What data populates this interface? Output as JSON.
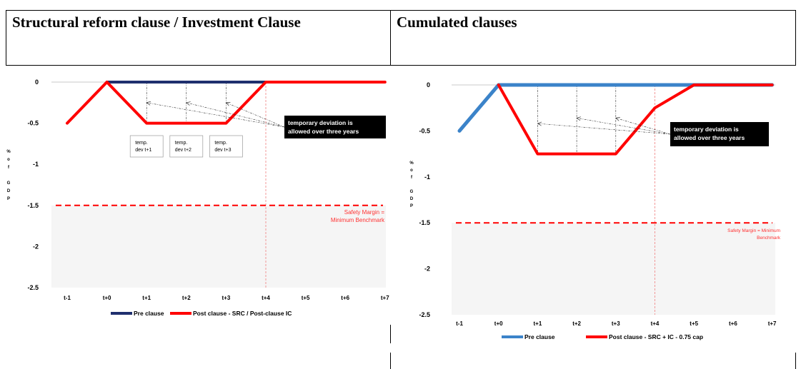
{
  "header": {
    "left_title": "Structural reform clause / Investment Clause",
    "right_title": "Cumulated clauses"
  },
  "chart_data": [
    {
      "type": "line",
      "x": [
        "t-1",
        "t+0",
        "t+1",
        "t+2",
        "t+3",
        "t+4",
        "t+5",
        "t+6",
        "t+7"
      ],
      "ylim": [
        -2.5,
        0
      ],
      "yticks": [
        "0",
        "-0.5",
        "-1",
        "-1.5",
        "-2",
        "-2.5"
      ],
      "ylabel": "% of GDP",
      "series": [
        {
          "name": "Pre clause",
          "color": "#1f2f6e",
          "values": [
            null,
            0,
            0,
            0,
            0,
            0,
            null,
            null,
            null
          ]
        },
        {
          "name": "Post clause - SRC / Post-clause IC",
          "color": "#ff0000",
          "values": [
            -0.5,
            0,
            -0.5,
            -0.5,
            -0.5,
            0,
            0,
            0,
            0
          ]
        }
      ],
      "safety_margin": {
        "value": -1.5,
        "label_line1": "Safety Margin =",
        "label_line2": "Minimum Benchmark"
      },
      "marker_x": "t+4",
      "callout": {
        "line1": "temporary deviation is",
        "line2": "allowed over three years"
      },
      "dev_boxes": [
        {
          "x": "t+1",
          "line1": "temp.",
          "line2": "dev t+1"
        },
        {
          "x": "t+2",
          "line1": "temp.",
          "line2": "dev t+2"
        },
        {
          "x": "t+3",
          "line1": "temp.",
          "line2": "dev t+3"
        }
      ]
    },
    {
      "type": "line",
      "x": [
        "t-1",
        "t+0",
        "t+1",
        "t+2",
        "t+3",
        "t+4",
        "t+5",
        "t+6",
        "t+7"
      ],
      "ylim": [
        -2.5,
        0
      ],
      "yticks": [
        "0",
        "-0.5",
        "-1",
        "-1.5",
        "-2",
        "-2.5"
      ],
      "ylabel": "% of GDP",
      "series": [
        {
          "name": "Pre clause",
          "color": "#3b83c9",
          "values": [
            -0.5,
            0,
            0,
            0,
            0,
            0,
            0,
            0,
            0
          ]
        },
        {
          "name": "Post clause - SRC + IC - 0.75 cap",
          "color": "#ff0000",
          "values": [
            null,
            0,
            -0.75,
            -0.75,
            -0.75,
            -0.25,
            0,
            0,
            0
          ]
        }
      ],
      "safety_margin": {
        "value": -1.5,
        "label_line1": "Safety Margin = Minimum",
        "label_line2": "Benchmark"
      },
      "marker_x": "t+4",
      "callout": {
        "line1": "temporary deviation is",
        "line2": "allowed over three years"
      }
    }
  ]
}
